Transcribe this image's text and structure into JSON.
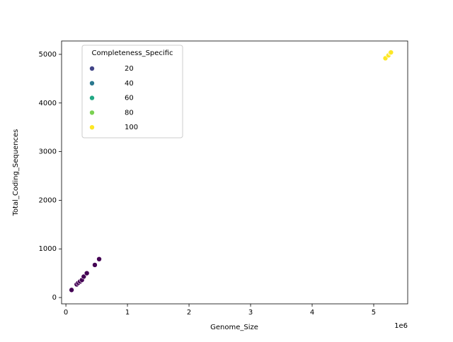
{
  "chart_data": {
    "type": "scatter",
    "x_label": "Genome_Size",
    "y_label": "Total_Coding_Sequences",
    "x_offset_label": "1e6",
    "x": [
      92000,
      175000,
      200000,
      230000,
      260000,
      290000,
      340000,
      470000,
      540000,
      5190000,
      5240000,
      5270000,
      5280000
    ],
    "values": [
      155,
      270,
      300,
      330,
      360,
      430,
      500,
      670,
      790,
      4920,
      4980,
      5030,
      5040
    ],
    "hue": [
      5,
      6,
      7,
      6,
      8,
      7,
      9,
      8,
      10,
      100,
      100,
      100,
      100
    ],
    "colors": [
      "#440154",
      "#440154",
      "#440154",
      "#440154",
      "#440154",
      "#440154",
      "#440154",
      "#440154",
      "#440154",
      "#fde725",
      "#fde725",
      "#fde725",
      "#fde725"
    ],
    "legend": {
      "title": "Completeness_Specific",
      "loc": "upper left",
      "entries": [
        {
          "label": "20",
          "color": "#414487"
        },
        {
          "label": "40",
          "color": "#2a788e"
        },
        {
          "label": "60",
          "color": "#22a884"
        },
        {
          "label": "80",
          "color": "#7ad151"
        },
        {
          "label": "100",
          "color": "#fde725"
        }
      ]
    },
    "xlim": [
      -70000,
      5552000
    ],
    "ylim": [
      -130,
      5275
    ],
    "xticks": [
      0,
      {
        "value": 1000000,
        "label": "1"
      },
      {
        "value": 2000000,
        "label": "2"
      },
      {
        "value": 3000000,
        "label": "3"
      },
      {
        "value": 4000000,
        "label": "4"
      },
      {
        "value": 5000000,
        "label": "5"
      }
    ],
    "yticks": [
      0,
      1000,
      2000,
      3000,
      4000,
      5000
    ]
  }
}
